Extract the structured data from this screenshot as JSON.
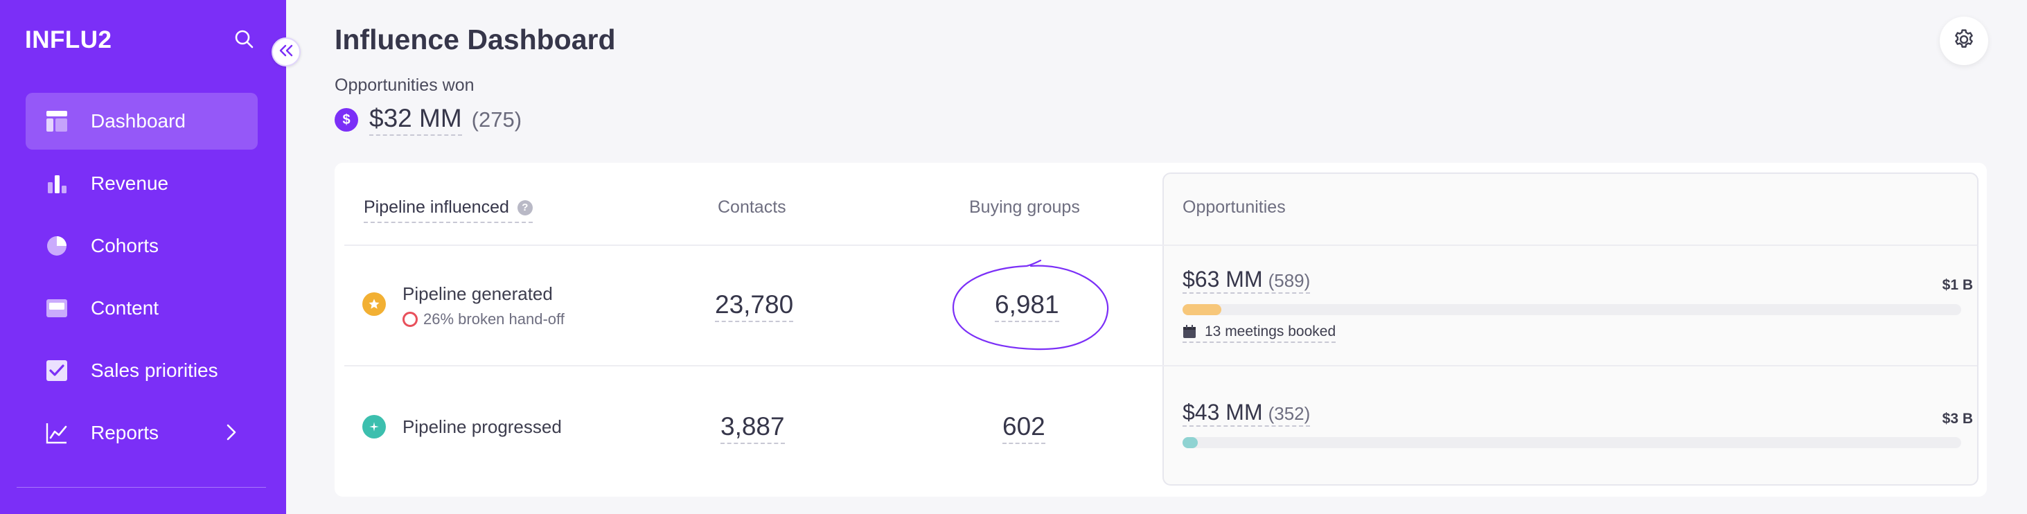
{
  "app": {
    "logo": "INFLU2"
  },
  "sidebar": {
    "items": [
      {
        "label": "Dashboard",
        "icon": "dashboard-icon",
        "active": true
      },
      {
        "label": "Revenue",
        "icon": "bar-chart-icon"
      },
      {
        "label": "Cohorts",
        "icon": "pie-chart-icon"
      },
      {
        "label": "Content",
        "icon": "content-icon"
      },
      {
        "label": "Sales priorities",
        "icon": "checkbox-icon"
      },
      {
        "label": "Reports",
        "icon": "line-chart-icon",
        "has_children": true
      }
    ]
  },
  "header": {
    "title": "Influence Dashboard"
  },
  "summary": {
    "label": "Opportunities won",
    "coin_symbol": "$",
    "value": "$32 MM",
    "count": "(275)"
  },
  "table": {
    "headers": {
      "pipeline": "Pipeline influenced",
      "contacts": "Contacts",
      "buying_groups": "Buying groups",
      "opportunities": "Opportunities"
    },
    "help_glyph": "?",
    "rows": [
      {
        "title": "Pipeline generated",
        "subtitle": "26% broken hand-off",
        "contacts": "23,780",
        "buying_groups": "6,981",
        "opp_value": "$63 MM",
        "opp_count": "(589)",
        "opp_max": "$1 B",
        "progress": 0.05,
        "meetings": "13 meetings booked"
      },
      {
        "title": "Pipeline progressed",
        "contacts": "3,887",
        "buying_groups": "602",
        "opp_value": "$43 MM",
        "opp_count": "(352)",
        "opp_max": "$3 B",
        "progress": 0.02
      }
    ]
  },
  "colors": {
    "brand": "#7b2ff7",
    "star": "#f2b033",
    "progressed": "#3cbfae",
    "bar_generated": "#f7c77a",
    "bar_progressed": "#8fd3d2",
    "alert": "#e8505b"
  }
}
